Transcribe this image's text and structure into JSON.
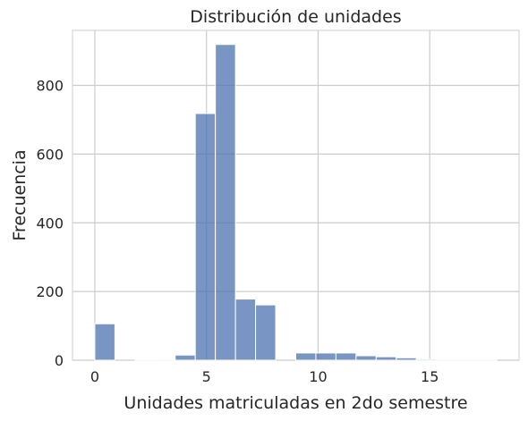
{
  "chart_data": {
    "type": "bar",
    "subtype": "histogram",
    "title": "Distribución de unidades",
    "xlabel": "Unidades matriculadas en 2do semestre",
    "ylabel": "Frecuencia",
    "xlim": [
      -1,
      19
    ],
    "ylim": [
      0,
      960
    ],
    "x_ticks": [
      0,
      5,
      10,
      15
    ],
    "y_ticks": [
      0,
      200,
      400,
      600,
      800
    ],
    "grid": true,
    "bar_color": "#4c72b0",
    "bins": [
      {
        "x0": 0.0,
        "x1": 0.9,
        "value": 106
      },
      {
        "x0": 0.9,
        "x1": 1.8,
        "value": 0
      },
      {
        "x0": 1.8,
        "x1": 2.7,
        "value": 2
      },
      {
        "x0": 2.7,
        "x1": 3.6,
        "value": 1
      },
      {
        "x0": 3.6,
        "x1": 4.5,
        "value": 15
      },
      {
        "x0": 4.5,
        "x1": 5.4,
        "value": 718
      },
      {
        "x0": 5.4,
        "x1": 6.3,
        "value": 919
      },
      {
        "x0": 6.3,
        "x1": 7.2,
        "value": 178
      },
      {
        "x0": 7.2,
        "x1": 8.1,
        "value": 161
      },
      {
        "x0": 8.1,
        "x1": 9.0,
        "value": 0
      },
      {
        "x0": 9.0,
        "x1": 9.9,
        "value": 21
      },
      {
        "x0": 9.9,
        "x1": 10.8,
        "value": 21
      },
      {
        "x0": 10.8,
        "x1": 11.7,
        "value": 21
      },
      {
        "x0": 11.7,
        "x1": 12.6,
        "value": 13
      },
      {
        "x0": 12.6,
        "x1": 13.5,
        "value": 10
      },
      {
        "x0": 13.5,
        "x1": 14.4,
        "value": 7
      },
      {
        "x0": 14.4,
        "x1": 15.3,
        "value": 3
      },
      {
        "x0": 15.3,
        "x1": 16.2,
        "value": 1
      },
      {
        "x0": 16.2,
        "x1": 17.1,
        "value": 1
      },
      {
        "x0": 17.1,
        "x1": 18.0,
        "value": 1
      }
    ]
  }
}
